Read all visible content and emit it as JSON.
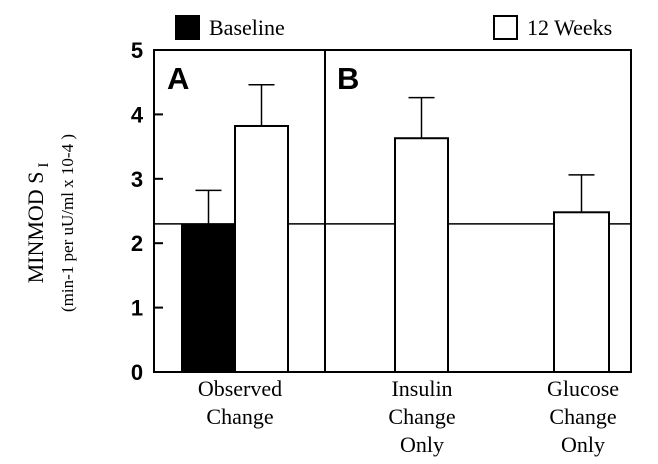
{
  "chart_data": {
    "type": "bar",
    "ylabel_main": "MINMOD S",
    "ylabel_subscript": "I",
    "ylabel_units": "(min-1 per uU/ml x 10-4 )",
    "ylim": [
      0,
      5
    ],
    "yticks": [
      "0",
      "1",
      "2",
      "3",
      "4",
      "5"
    ],
    "grid": false,
    "legend_position": "top",
    "legend": [
      {
        "name": "Baseline",
        "fill": "#000000"
      },
      {
        "name": "12 Weeks",
        "fill": "#ffffff"
      }
    ],
    "panels": [
      {
        "label": "A"
      },
      {
        "label": "B"
      }
    ],
    "reference_line": 2.3,
    "groups": [
      {
        "label_lines": [
          "Observed",
          "Change"
        ],
        "bars": [
          {
            "series": "Baseline",
            "value": 2.28,
            "error": 0.54
          },
          {
            "series": "12 Weeks",
            "value": 3.82,
            "error": 0.64
          }
        ]
      },
      {
        "label_lines": [
          "Insulin",
          "Change",
          "Only"
        ],
        "bars": [
          {
            "series": "12 Weeks",
            "value": 3.63,
            "error": 0.63
          }
        ]
      },
      {
        "label_lines": [
          "Glucose",
          "Change",
          "Only"
        ],
        "bars": [
          {
            "series": "12 Weeks",
            "value": 2.48,
            "error": 0.58
          }
        ]
      }
    ]
  }
}
